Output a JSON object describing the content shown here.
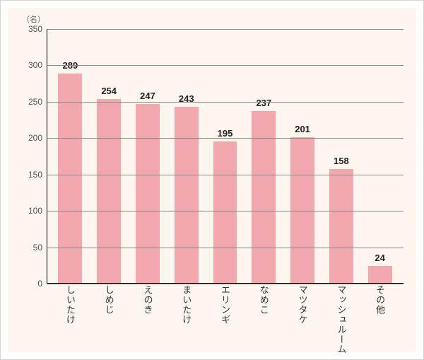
{
  "chart": {
    "type": "bar",
    "y_unit_label": "（名）",
    "categories": [
      "しいたけ",
      "しめじ",
      "えのき",
      "まいたけ",
      "エリンギ",
      "なめこ",
      "マツタケ",
      "マッシュルーム",
      "その他"
    ],
    "values": [
      289,
      254,
      247,
      243,
      195,
      237,
      201,
      158,
      24
    ],
    "bar_color": "#f2a7ae",
    "background_color": "#fdf6ef",
    "grid_color": "#888888",
    "axis_color": "#000000",
    "value_label_color": "#222222",
    "value_label_fontsize": 13,
    "value_label_fontweight": "bold",
    "x_label_fontsize": 13,
    "y_label_fontsize": 12,
    "y_label_color": "#555555",
    "ylim": [
      0,
      350
    ],
    "ytick_step": 50,
    "yticks": [
      0,
      50,
      100,
      150,
      200,
      250,
      300,
      350
    ],
    "bar_width_ratio": 0.62,
    "frame_border_color": "#e0d0c8"
  }
}
